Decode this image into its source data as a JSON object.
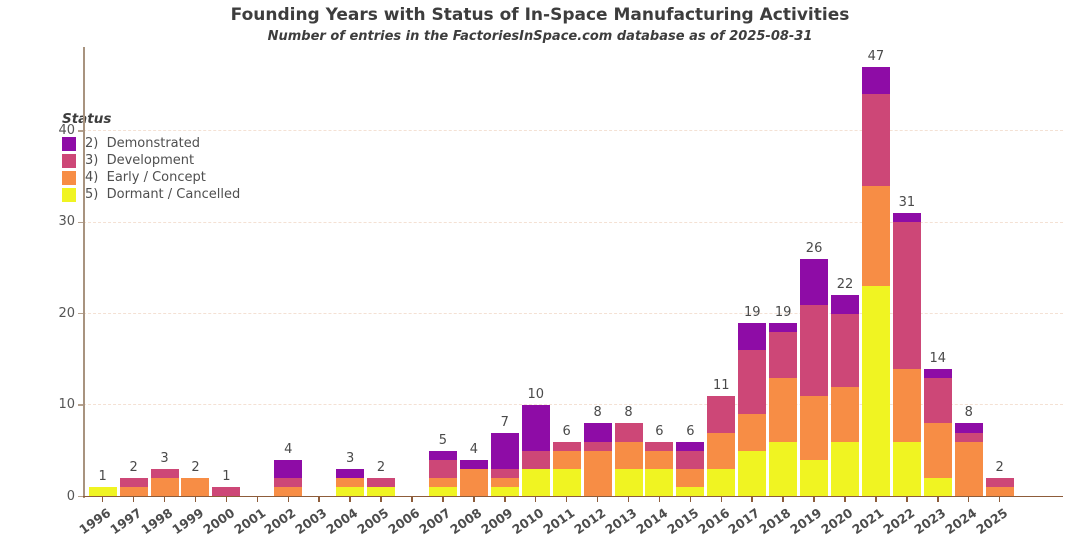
{
  "title": "Founding Years with Status of In-Space Manufacturing Activities",
  "subtitle": "Number of entries in the FactoriesInSpace.com database as of 2025-08-31",
  "legend": {
    "title": "Status",
    "items": [
      {
        "label": "2)  Demonstrated",
        "color": "#8e0ca6"
      },
      {
        "label": "3)  Development",
        "color": "#cd4777"
      },
      {
        "label": "4)  Early / Concept",
        "color": "#f78d45"
      },
      {
        "label": "5)  Dormant / Cancelled",
        "color": "#f0f422"
      }
    ]
  },
  "chart_data": {
    "type": "bar",
    "stacked": true,
    "title": "Founding Years with Status of In-Space Manufacturing Activities",
    "subtitle": "Number of entries in the FactoriesInSpace.com database as of 2025-08-31",
    "xlabel": "",
    "ylabel": "",
    "categories": [
      1996,
      1997,
      1998,
      1999,
      2000,
      2001,
      2002,
      2003,
      2004,
      2005,
      2006,
      2007,
      2008,
      2009,
      2010,
      2011,
      2012,
      2013,
      2014,
      2015,
      2016,
      2017,
      2018,
      2019,
      2020,
      2021,
      2022,
      2023,
      2024,
      2025
    ],
    "series": [
      {
        "name": "2) Demonstrated",
        "color": "#8e0ca6",
        "values": [
          0,
          0,
          0,
          0,
          0,
          0,
          2,
          0,
          1,
          0,
          0,
          1,
          1,
          4,
          5,
          0,
          2,
          0,
          0,
          1,
          0,
          3,
          1,
          5,
          2,
          3,
          1,
          1,
          1,
          0
        ]
      },
      {
        "name": "3) Development",
        "color": "#cd4777",
        "values": [
          0,
          1,
          1,
          0,
          1,
          0,
          1,
          0,
          0,
          1,
          0,
          2,
          0,
          1,
          2,
          1,
          1,
          2,
          1,
          2,
          4,
          7,
          5,
          10,
          8,
          10,
          16,
          5,
          1,
          1
        ]
      },
      {
        "name": "4) Early / Concept",
        "color": "#f78d45",
        "values": [
          0,
          1,
          2,
          2,
          0,
          0,
          1,
          0,
          1,
          0,
          0,
          1,
          3,
          1,
          0,
          2,
          5,
          3,
          2,
          2,
          4,
          4,
          7,
          7,
          6,
          11,
          8,
          6,
          6,
          1
        ]
      },
      {
        "name": "5) Dormant / Cancelled",
        "color": "#f0f422",
        "values": [
          1,
          0,
          0,
          0,
          0,
          0,
          0,
          0,
          1,
          1,
          0,
          1,
          0,
          1,
          3,
          3,
          0,
          3,
          3,
          1,
          3,
          5,
          6,
          4,
          6,
          23,
          6,
          2,
          0,
          0
        ]
      }
    ],
    "bar_total_labels": [
      1,
      2,
      3,
      2,
      1,
      0,
      4,
      0,
      3,
      2,
      0,
      5,
      4,
      7,
      10,
      6,
      8,
      8,
      6,
      6,
      11,
      19,
      19,
      26,
      22,
      47,
      31,
      14,
      8,
      2
    ],
    "yticks": [
      0,
      10,
      20,
      30,
      40
    ],
    "ylim": [
      0,
      48
    ],
    "grid": "horizontal dashed at yticks",
    "grid_color": "#f4e1d4",
    "y_axis_color": "#a8937f",
    "x_axis_color": "#8d5c3a",
    "legend_position": "inside top-left"
  }
}
